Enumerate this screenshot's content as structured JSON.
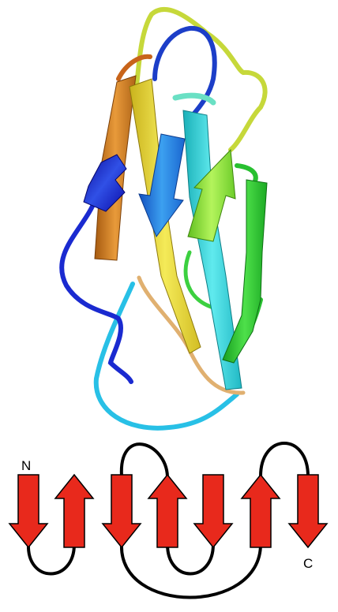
{
  "topology": {
    "n_label": "N",
    "c_label": "C",
    "strand_color": "#e8291c",
    "strand_outline": "#000000",
    "loop_color": "#000000",
    "strands": [
      {
        "id": 1,
        "direction": "down"
      },
      {
        "id": 2,
        "direction": "up"
      },
      {
        "id": 3,
        "direction": "down"
      },
      {
        "id": 4,
        "direction": "up"
      },
      {
        "id": 5,
        "direction": "down"
      },
      {
        "id": 6,
        "direction": "up"
      },
      {
        "id": 7,
        "direction": "down"
      }
    ]
  },
  "ribbon": {
    "description_colors": [
      "#1010c8",
      "#1e6ee6",
      "#1ec8e6",
      "#3ce6a0",
      "#6ee63c",
      "#e6e63c",
      "#e6a03c",
      "#c86414"
    ]
  }
}
